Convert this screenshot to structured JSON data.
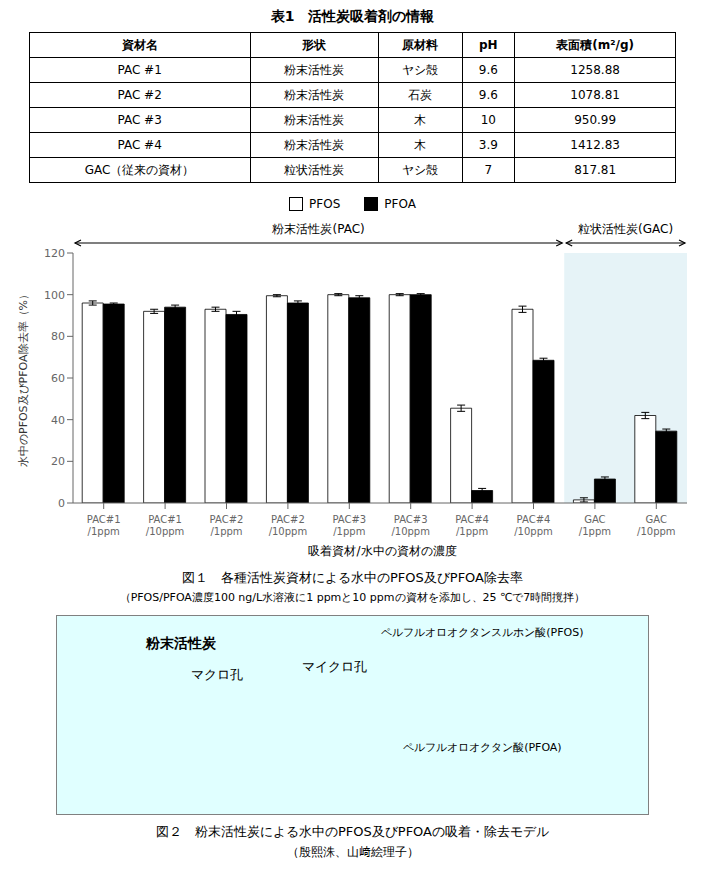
{
  "table": {
    "title": "表1　活性炭吸着剤の情報",
    "headers": [
      "資材名",
      "形状",
      "原材料",
      "pH",
      "表面積(m²/g)"
    ],
    "rows": [
      [
        "PAC #1",
        "粉末活性炭",
        "ヤシ殻",
        "9.6",
        "1258.88"
      ],
      [
        "PAC #2",
        "粉末活性炭",
        "石炭",
        "9.6",
        "1078.81"
      ],
      [
        "PAC #3",
        "粉末活性炭",
        "木",
        "10",
        "950.99"
      ],
      [
        "PAC #4",
        "粉末活性炭",
        "木",
        "3.9",
        "1412.83"
      ],
      [
        "GAC（従来の資材）",
        "粒状活性炭",
        "ヤシ殻",
        "7",
        "817.81"
      ]
    ]
  },
  "chart_data": {
    "type": "bar",
    "categories": [
      "PAC#1\n/1ppm",
      "PAC#1\n/10ppm",
      "PAC#2\n/1ppm",
      "PAC#2\n/10ppm",
      "PAC#3\n/1ppm",
      "PAC#3\n/10ppm",
      "PAC#4\n/1ppm",
      "PAC#4\n/10ppm",
      "GAC\n/1ppm",
      "GAC\n/10ppm"
    ],
    "series": [
      {
        "name": "PFOS",
        "color": "white",
        "values": [
          96.0,
          92.0,
          93.0,
          99.5,
          100.0,
          100.0,
          45.5,
          93.0,
          1.5,
          42.0
        ],
        "errors": [
          1.0,
          1.0,
          1.0,
          0.5,
          0.5,
          0.5,
          1.5,
          1.5,
          1.0,
          1.5
        ]
      },
      {
        "name": "PFOA",
        "color": "black",
        "values": [
          95.5,
          94.0,
          90.5,
          96.0,
          98.5,
          100.0,
          6.0,
          68.5,
          11.5,
          34.5
        ],
        "errors": [
          0.5,
          1.0,
          1.5,
          1.0,
          1.0,
          0.5,
          1.0,
          1.0,
          1.0,
          1.0
        ]
      }
    ],
    "ylabel": "水中のPFOS及びPFOA除去率（%）",
    "xlabel": "吸着資材/水中の資材の濃度",
    "ylim": [
      0,
      120
    ],
    "yticks": [
      0,
      20,
      40,
      60,
      80,
      100,
      120
    ],
    "legend": "top",
    "annotations": [
      {
        "text": "粉末活性炭(PAC)",
        "from": "PAC#1\n/1ppm",
        "to": "PAC#4\n/10ppm"
      },
      {
        "text": "粒状活性炭(GAC)",
        "from": "GAC\n/1ppm",
        "to": "GAC\n/10ppm",
        "color": "lightblue"
      }
    ]
  },
  "captions": [
    "図１　各種活性炭資材による水中のPFOS及びPFOA除去率",
    "（PFOS/PFOA濃度100 ng/L水溶液に1 ppmと10 ppmの資材を添加し、25 ℃で7時間撹拌）"
  ],
  "figure2": {
    "labels": [
      "粉末活性炭",
      "マクロ孔",
      "マイクロ孔",
      "ペルフルオロオクタンスルホン酸(PFOS)",
      "ペルフルオロオクタン酸(PFOA)"
    ],
    "caption": "図２　粉末活性炭による水中のPFOS及びPFOAの吸着・除去モデル",
    "credit": "（殷熙洙、山﨑絵理子）"
  }
}
